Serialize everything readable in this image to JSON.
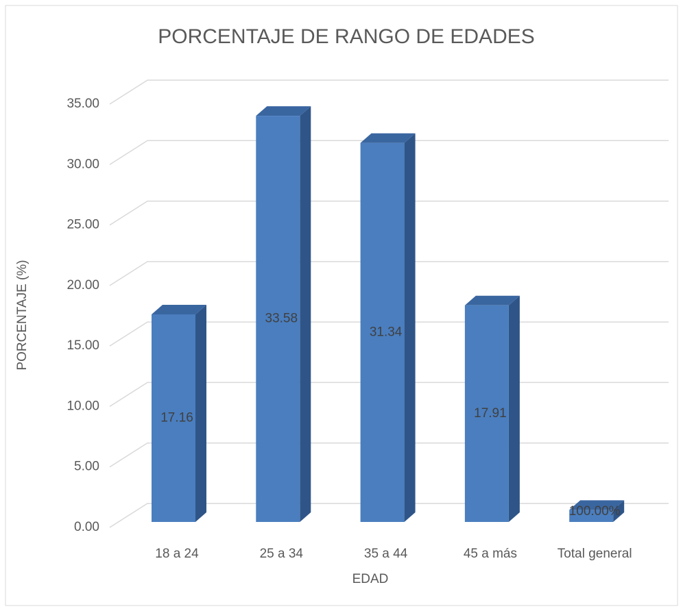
{
  "chart_data": {
    "type": "bar3d",
    "title": "PORCENTAJE DE RANGO DE EDADES",
    "x_label": "EDAD",
    "y_label": "PORCENTAJE (%)",
    "categories": [
      "18 a 24",
      "25 a 34",
      "35 a 44",
      "45 a más",
      "Total general"
    ],
    "values": [
      17.16,
      33.58,
      31.34,
      17.91,
      1
    ],
    "value_labels": [
      "17.16",
      "33.58",
      "31.34",
      "17.91",
      "100.00%"
    ],
    "color": "#4a7ebf",
    "ylim": [
      0,
      35
    ],
    "yticks": [
      {
        "value": 0,
        "label": "0.00"
      },
      {
        "value": 5,
        "label": "5.00"
      },
      {
        "value": 10,
        "label": "10.00"
      },
      {
        "value": 15,
        "label": "15.00"
      },
      {
        "value": 20,
        "label": "20.00"
      },
      {
        "value": 25,
        "label": "25.00"
      },
      {
        "value": 30,
        "label": "30.00"
      },
      {
        "value": 35,
        "label": "35.00"
      }
    ],
    "grid": true
  }
}
